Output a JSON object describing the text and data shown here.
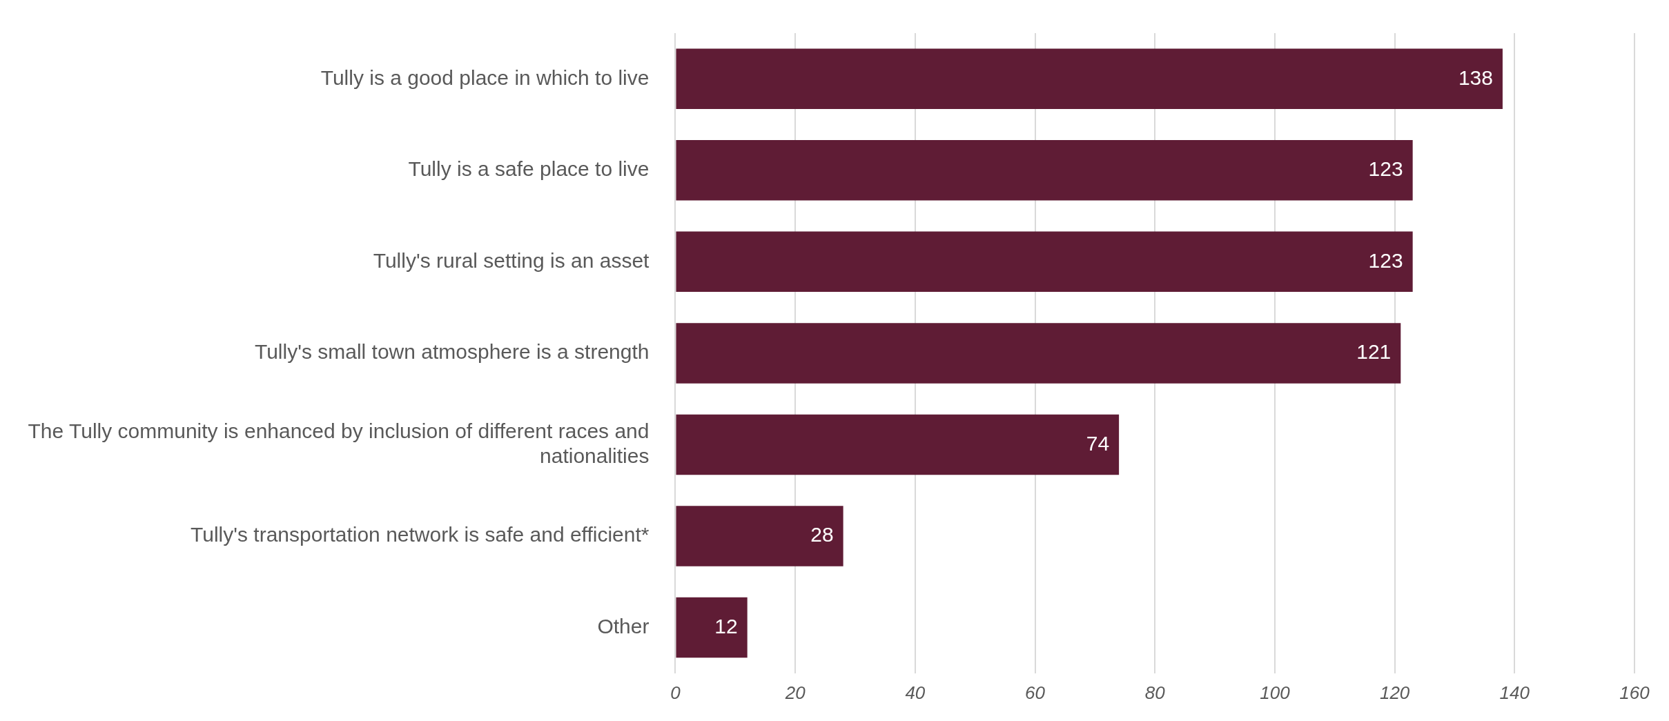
{
  "chart_data": {
    "type": "bar",
    "orientation": "horizontal",
    "categories": [
      "Tully is a good place in which to live",
      "Tully is a safe place to live",
      "Tully's rural setting is an asset",
      "Tully's small town atmosphere is a strength",
      "The Tully community is enhanced by inclusion of different races and nationalities",
      "Tully's transportation network is safe and efficient*",
      "Other"
    ],
    "values": [
      138,
      123,
      123,
      121,
      74,
      28,
      12
    ],
    "color": "#5f1c35",
    "xlim": [
      0,
      160
    ],
    "xticks": [
      0,
      20,
      40,
      60,
      80,
      100,
      120,
      140,
      160
    ],
    "grid": "x",
    "legend": false,
    "data_labels": true
  }
}
